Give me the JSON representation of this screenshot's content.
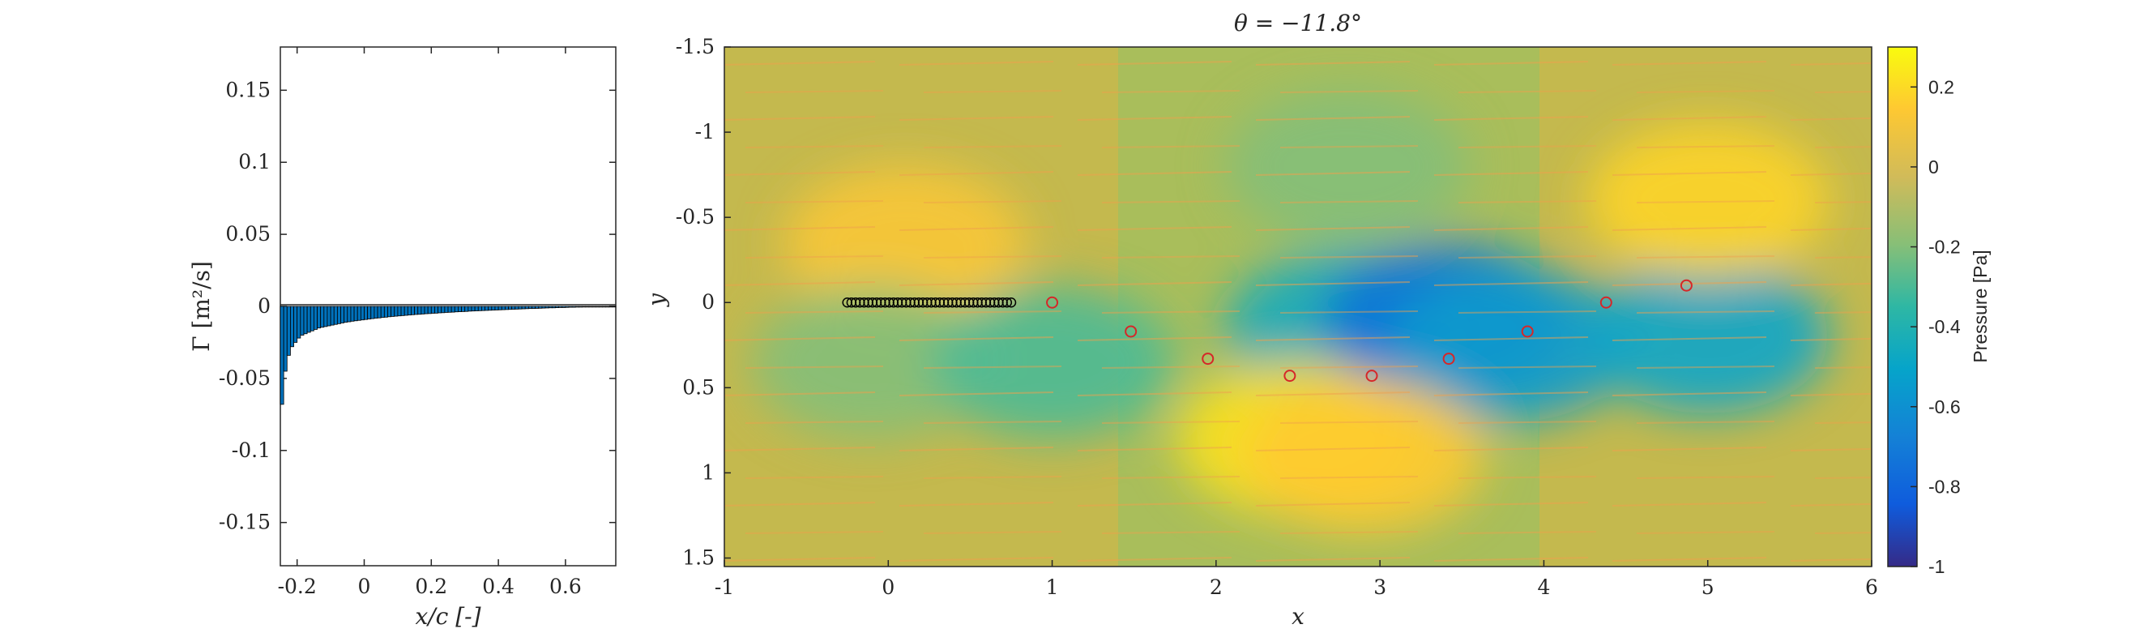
{
  "chart_data": [
    {
      "type": "bar",
      "xlabel": "x/c [-]",
      "ylabel": "Γ [m²/s]",
      "xlim": [
        -0.25,
        0.75
      ],
      "ylim": [
        -0.18,
        0.18
      ],
      "xticks": [
        "-0.2",
        "0",
        "0.2",
        "0.4",
        "0.6"
      ],
      "yticks": [
        "0.15",
        "0.1",
        "0.05",
        "0",
        "-0.05",
        "-0.1",
        "-0.15"
      ],
      "bar_color": "#0072BD",
      "x": [
        -0.245,
        -0.235,
        -0.225,
        -0.215,
        -0.205,
        -0.195,
        -0.185,
        -0.175,
        -0.165,
        -0.155,
        -0.145,
        -0.135,
        -0.125,
        -0.115,
        -0.105,
        -0.095,
        -0.085,
        -0.075,
        -0.065,
        -0.055,
        -0.045,
        -0.035,
        -0.025,
        -0.015,
        -0.005,
        0.005,
        0.015,
        0.025,
        0.035,
        0.045,
        0.055,
        0.065,
        0.075,
        0.085,
        0.095,
        0.105,
        0.115,
        0.125,
        0.135,
        0.145,
        0.155,
        0.165,
        0.175,
        0.185,
        0.195,
        0.205,
        0.215,
        0.225,
        0.235,
        0.245,
        0.255,
        0.265,
        0.275,
        0.285,
        0.295,
        0.305,
        0.315,
        0.325,
        0.335,
        0.345,
        0.355,
        0.365,
        0.375,
        0.385,
        0.395,
        0.405,
        0.415,
        0.425,
        0.435,
        0.445,
        0.455,
        0.465,
        0.475,
        0.485,
        0.495,
        0.505,
        0.515,
        0.525,
        0.535,
        0.545,
        0.555,
        0.565,
        0.575,
        0.585,
        0.595,
        0.605,
        0.615,
        0.625,
        0.635,
        0.645,
        0.655,
        0.665,
        0.675,
        0.685,
        0.695,
        0.705,
        0.715,
        0.725,
        0.735,
        0.745
      ],
      "values": [
        -0.068,
        -0.045,
        -0.034,
        -0.028,
        -0.025,
        -0.022,
        -0.02,
        -0.019,
        -0.018,
        -0.017,
        -0.016,
        -0.015,
        -0.0145,
        -0.014,
        -0.0135,
        -0.013,
        -0.0125,
        -0.012,
        -0.0115,
        -0.011,
        -0.0107,
        -0.0103,
        -0.01,
        -0.0097,
        -0.0094,
        -0.0091,
        -0.0088,
        -0.0085,
        -0.0082,
        -0.008,
        -0.0077,
        -0.0075,
        -0.0072,
        -0.007,
        -0.0068,
        -0.0066,
        -0.0064,
        -0.0062,
        -0.006,
        -0.0058,
        -0.0056,
        -0.0055,
        -0.0053,
        -0.0051,
        -0.005,
        -0.0048,
        -0.0047,
        -0.0045,
        -0.0044,
        -0.0042,
        -0.0041,
        -0.004,
        -0.0038,
        -0.0037,
        -0.0036,
        -0.0035,
        -0.0033,
        -0.0032,
        -0.0031,
        -0.003,
        -0.0029,
        -0.0028,
        -0.0027,
        -0.0026,
        -0.0025,
        -0.0024,
        -0.0023,
        -0.0022,
        -0.0021,
        -0.002,
        -0.0019,
        -0.0018,
        -0.0017,
        -0.0016,
        -0.0015,
        -0.0015,
        -0.0014,
        -0.0013,
        -0.0012,
        -0.0011,
        -0.001,
        -0.001,
        -0.0009,
        -0.0008,
        -0.0008,
        -0.0007,
        -0.0006,
        -0.0006,
        -0.0005,
        -0.0005,
        -0.0004,
        -0.0004,
        -0.0003,
        -0.0003,
        -0.0002,
        -0.0002,
        -0.0002,
        -0.0001,
        -0.0001,
        -0.0001
      ]
    },
    {
      "type": "heatmap",
      "title": "θ = −11.8°",
      "xlabel": "x",
      "ylabel": "y",
      "xlim": [
        -1,
        6
      ],
      "ylim": [
        -1.5,
        1.55
      ],
      "y_reversed": true,
      "xticks": [
        "-1",
        "0",
        "1",
        "2",
        "3",
        "4",
        "5",
        "6"
      ],
      "yticks": [
        "-1.5",
        "-1",
        "-0.5",
        "0",
        "0.5",
        "1",
        "1.5"
      ],
      "colorbar": {
        "label": "Pressure [Pa]",
        "range": [
          -1,
          0.3
        ],
        "ticks": [
          "0.2",
          "0",
          "-0.2",
          "-0.4",
          "-0.6",
          "-0.8",
          "-1"
        ],
        "colormap": "parula"
      },
      "pressure_blobs": [
        {
          "x": 0.1,
          "y": -0.35,
          "value": 0.12
        },
        {
          "x": -0.1,
          "y": 0.35,
          "value": -0.2
        },
        {
          "x": 1.0,
          "y": 0.35,
          "value": -0.3
        },
        {
          "x": 2.8,
          "y": 0.15,
          "value": -0.45
        },
        {
          "x": 3.4,
          "y": 0.1,
          "value": -0.75
        },
        {
          "x": 3.8,
          "y": 0.25,
          "value": -0.55
        },
        {
          "x": 5.0,
          "y": 0.2,
          "value": -0.5
        },
        {
          "x": 5.0,
          "y": -0.6,
          "value": 0.18
        },
        {
          "x": 2.5,
          "y": 0.8,
          "value": 0.22
        },
        {
          "x": 2.9,
          "y": 0.9,
          "value": 0.15
        },
        {
          "x": 2.8,
          "y": -0.8,
          "value": -0.2
        }
      ],
      "plate_points": {
        "x_start": -0.25,
        "x_end": 0.75,
        "count": 40,
        "y": 0.0,
        "color": "#000000"
      },
      "wake_vortices": {
        "color": "#D62728",
        "x": [
          1.0,
          1.48,
          1.95,
          2.45,
          2.95,
          3.42,
          3.9,
          4.38,
          4.87
        ],
        "y": [
          0.0,
          0.17,
          0.33,
          0.43,
          0.43,
          0.33,
          0.17,
          0.0,
          -0.1
        ]
      }
    }
  ]
}
